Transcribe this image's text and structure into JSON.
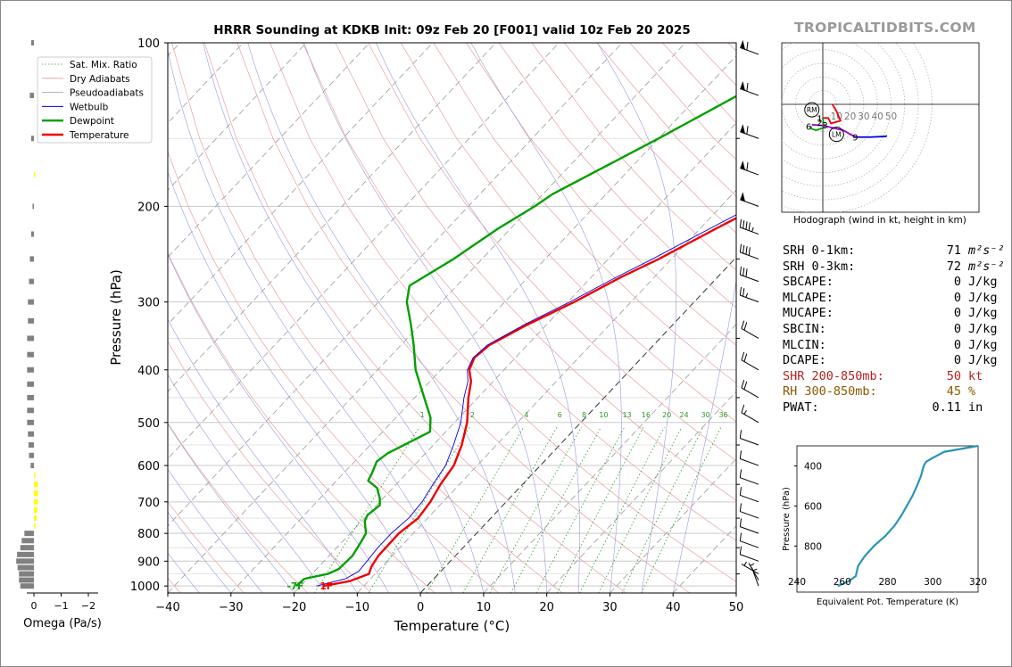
{
  "title": "HRRR Sounding at KDKB Init: 09z Feb 20 [F001] valid 10z Feb 20 2025",
  "brand": "TROPICALTIDBITS.COM",
  "chart_data": [
    {
      "type": "skewt",
      "xlabel": "Temperature (°C)",
      "ylabel": "Pressure (hPa)",
      "xlim": [
        -40,
        50
      ],
      "ylim": [
        1030,
        100
      ],
      "y_scale": "log",
      "x_ticks": [
        "−40",
        "−30",
        "−20",
        "−10",
        "0",
        "10",
        "20",
        "30",
        "40",
        "50"
      ],
      "y_ticks": [
        "100",
        "200",
        "300",
        "400",
        "500",
        "600",
        "700",
        "800",
        "900",
        "1000"
      ],
      "legend": {
        "placement": "upper-left",
        "entries": [
          {
            "name": "Sat. Mix. Ratio",
            "color": "#2a9a2a",
            "style": "dotted"
          },
          {
            "name": "Dry Adiabats",
            "color": "#e39a9a",
            "style": "solid"
          },
          {
            "name": "Pseudoadiabats",
            "color": "#a0a0a0",
            "style": "solid"
          },
          {
            "name": "Wetbulb",
            "color": "#0000dd",
            "style": "solid"
          },
          {
            "name": "Dewpoint",
            "color": "#00a000",
            "style": "solid"
          },
          {
            "name": "Temperature",
            "color": "#ee0000",
            "style": "solid"
          }
        ]
      },
      "series": [
        {
          "name": "Temperature",
          "color": "#ee0000",
          "points": [
            [
              1000,
              -16.5
            ],
            [
              980,
              -13
            ],
            [
              950,
              -11
            ],
            [
              920,
              -11.7
            ],
            [
              880,
              -12.2
            ],
            [
              800,
              -12.3
            ],
            [
              750,
              -11.5
            ],
            [
              700,
              -12
            ],
            [
              650,
              -13
            ],
            [
              600,
              -13.7
            ],
            [
              550,
              -15.5
            ],
            [
              500,
              -18
            ],
            [
              450,
              -21.5
            ],
            [
              420,
              -23.5
            ],
            [
              400,
              -25.5
            ],
            [
              380,
              -26.5
            ],
            [
              360,
              -26
            ],
            [
              330,
              -23
            ],
            [
              300,
              -19
            ],
            [
              270,
              -15.3
            ],
            [
              250,
              -12
            ],
            [
              220,
              -7.5
            ],
            [
              200,
              -4
            ],
            [
              170,
              1.5
            ],
            [
              150,
              5.8
            ],
            [
              130,
              9.5
            ],
            [
              118,
              12
            ],
            [
              110,
              13.8
            ],
            [
              100,
              16
            ]
          ]
        },
        {
          "name": "Dewpoint",
          "color": "#00a000",
          "points": [
            [
              1000,
              -20.7
            ],
            [
              970,
              -20.5
            ],
            [
              950,
              -17.5
            ],
            [
              930,
              -16.5
            ],
            [
              880,
              -16.3
            ],
            [
              830,
              -17
            ],
            [
              800,
              -17.5
            ],
            [
              760,
              -19.5
            ],
            [
              740,
              -20
            ],
            [
              710,
              -19.5
            ],
            [
              690,
              -20.5
            ],
            [
              660,
              -22.5
            ],
            [
              640,
              -25
            ],
            [
              620,
              -25.5
            ],
            [
              590,
              -26.5
            ],
            [
              570,
              -26
            ],
            [
              520,
              -22.5
            ],
            [
              490,
              -24.5
            ],
            [
              450,
              -28.5
            ],
            [
              400,
              -34
            ],
            [
              360,
              -38
            ],
            [
              330,
              -41.5
            ],
            [
              300,
              -45.5
            ],
            [
              280,
              -47.5
            ],
            [
              250,
              -44.5
            ],
            [
              220,
              -42
            ],
            [
              200,
              -39.5
            ],
            [
              190,
              -38.5
            ],
            [
              150,
              -30
            ],
            [
              120,
              -22.5
            ],
            [
              100,
              -16
            ]
          ]
        },
        {
          "name": "Wetbulb",
          "color": "#0000dd",
          "points": [
            [
              1000,
              -17.5
            ],
            [
              970,
              -14
            ],
            [
              940,
              -13
            ],
            [
              900,
              -13.2
            ],
            [
              850,
              -13.5
            ],
            [
              800,
              -13.5
            ],
            [
              750,
              -13
            ],
            [
              700,
              -13.3
            ],
            [
              650,
              -14.2
            ],
            [
              600,
              -15
            ],
            [
              550,
              -16.8
            ],
            [
              500,
              -19
            ],
            [
              450,
              -22.2
            ],
            [
              420,
              -24
            ],
            [
              400,
              -25.8
            ],
            [
              380,
              -26.7
            ],
            [
              360,
              -26.3
            ],
            [
              330,
              -23.5
            ],
            [
              300,
              -19.7
            ],
            [
              270,
              -16
            ],
            [
              250,
              -13
            ],
            [
              220,
              -8.5
            ],
            [
              200,
              -5
            ],
            [
              170,
              0.5
            ],
            [
              150,
              4.8
            ],
            [
              130,
              8.8
            ],
            [
              118,
              11.5
            ],
            [
              110,
              13
            ],
            [
              100,
              15
            ]
          ]
        }
      ],
      "surface_labels": {
        "dewpoint": "-7F",
        "temperature": "1F"
      },
      "mixing_ratio_labels": [
        "1",
        "2",
        "4",
        "6",
        "8",
        "10",
        "13",
        "16",
        "20",
        "24",
        "30",
        "36"
      ]
    },
    {
      "type": "bar",
      "orientation": "horizontal",
      "xlabel": "Omega (Pa/s)",
      "x_ticks": [
        "0",
        "−1",
        "−2"
      ],
      "bar_colors": {
        "descending": "#808080",
        "ascending": "#ffff00"
      },
      "values": [
        [
          1000,
          0.5
        ],
        [
          975,
          0.55
        ],
        [
          950,
          0.55
        ],
        [
          925,
          0.6
        ],
        [
          900,
          0.65
        ],
        [
          875,
          0.62
        ],
        [
          850,
          0.5
        ],
        [
          825,
          0.45
        ],
        [
          800,
          0.35
        ],
        [
          775,
          -0.05
        ],
        [
          750,
          -0.1
        ],
        [
          725,
          -0.12
        ],
        [
          700,
          -0.15
        ],
        [
          675,
          -0.15
        ],
        [
          650,
          -0.15
        ],
        [
          625,
          -0.05
        ],
        [
          600,
          0.12
        ],
        [
          575,
          0.18
        ],
        [
          550,
          0.2
        ],
        [
          525,
          0.22
        ],
        [
          500,
          0.25
        ],
        [
          475,
          0.25
        ],
        [
          450,
          0.25
        ],
        [
          425,
          0.25
        ],
        [
          400,
          0.25
        ],
        [
          375,
          0.25
        ],
        [
          350,
          0.25
        ],
        [
          325,
          0.22
        ],
        [
          300,
          0.22
        ],
        [
          275,
          0.18
        ],
        [
          250,
          0.15
        ],
        [
          225,
          0.1
        ],
        [
          200,
          0.05
        ],
        [
          175,
          -0.05
        ],
        [
          150,
          0.1
        ],
        [
          125,
          0.15
        ],
        [
          100,
          0.1
        ]
      ]
    },
    {
      "type": "hodograph",
      "caption": "Hodograph (wind in kt, height in km)",
      "ring_labels": [
        "10",
        "20",
        "30",
        "40",
        "50"
      ],
      "markers": [
        {
          "label": "RM",
          "u": -8,
          "v": -4
        },
        {
          "label": "LM",
          "u": 10,
          "v": -22
        }
      ],
      "segments": [
        {
          "color": "#ee0000",
          "points": [
            [
              7,
              0
            ],
            [
              10,
              -5
            ],
            [
              13,
              -12
            ],
            [
              6,
              -14
            ],
            [
              4,
              -10
            ],
            [
              0,
              -10
            ]
          ]
        },
        {
          "color": "#00a000",
          "points": [
            [
              0,
              -10
            ],
            [
              1,
              -17
            ],
            [
              -5,
              -19
            ],
            [
              -8,
              -18
            ],
            [
              -9,
              -16
            ]
          ]
        },
        {
          "color": "#9a00cc",
          "points": [
            [
              -8,
              -15
            ],
            [
              0,
              -15.5
            ],
            [
              15,
              -19
            ],
            [
              22,
              -23
            ],
            [
              25,
              -24
            ]
          ]
        },
        {
          "color": "#0000dd",
          "points": [
            [
              25,
              -24
            ],
            [
              35,
              -24
            ],
            [
              46,
              -23.5
            ],
            [
              47,
              -23
            ]
          ]
        }
      ],
      "height_labels": [
        {
          "label": "1",
          "u": -1,
          "v": -10
        },
        {
          "label": "2",
          "u": -1,
          "v": -13
        },
        {
          "label": "3",
          "u": 3,
          "v": -15
        },
        {
          "label": "6",
          "u": -9,
          "v": -16
        },
        {
          "label": "9",
          "u": 25,
          "v": -24
        }
      ]
    },
    {
      "type": "line",
      "xlabel": "Equivalent Pot. Temperature (K)",
      "ylabel": "Pressure (hPa)",
      "xlim": [
        240,
        320
      ],
      "ylim": [
        1030,
        300
      ],
      "x_ticks": [
        "240",
        "260",
        "280",
        "300",
        "320"
      ],
      "y_ticks": [
        "400",
        "600",
        "800"
      ],
      "series": [
        {
          "name": "",
          "color": "#2a94b4",
          "points": [
            [
              1000,
              258
            ],
            [
              975,
              263
            ],
            [
              950,
              266
            ],
            [
              900,
              267
            ],
            [
              850,
              270
            ],
            [
              800,
              274
            ],
            [
              750,
              279
            ],
            [
              700,
              283
            ],
            [
              650,
              286
            ],
            [
              600,
              288.5
            ],
            [
              550,
              291
            ],
            [
              500,
              293
            ],
            [
              450,
              294.8
            ],
            [
              420,
              295.5
            ],
            [
              400,
              296
            ],
            [
              380,
              297
            ],
            [
              360,
              300
            ],
            [
              330,
              305
            ],
            [
              300,
              320
            ]
          ]
        }
      ]
    }
  ],
  "params": [
    {
      "label": "SRH 0-1km:",
      "value": "71",
      "unit": "m²s⁻²",
      "color": "#000000"
    },
    {
      "label": "SRH 0-3km:",
      "value": "72",
      "unit": "m²s⁻²",
      "color": "#000000"
    },
    {
      "label": "SBCAPE:",
      "value": "0",
      "unit": "J/kg",
      "color": "#000000"
    },
    {
      "label": "MLCAPE:",
      "value": "0",
      "unit": "J/kg",
      "color": "#000000"
    },
    {
      "label": "MUCAPE:",
      "value": "0",
      "unit": "J/kg",
      "color": "#000000"
    },
    {
      "label": "SBCIN:",
      "value": "0",
      "unit": "J/kg",
      "color": "#000000"
    },
    {
      "label": "MLCIN:",
      "value": "0",
      "unit": "J/kg",
      "color": "#000000"
    },
    {
      "label": "DCAPE:",
      "value": "0",
      "unit": "J/kg",
      "color": "#000000"
    },
    {
      "label": "SHR 200-850mb:",
      "value": "50",
      "unit": "kt",
      "color": "#b22222"
    },
    {
      "label": "RH 300-850mb:",
      "value": "45",
      "unit": "%",
      "color": "#8b5a00"
    },
    {
      "label": "PWAT:",
      "value": "0.11",
      "unit": "in",
      "color": "#000000"
    }
  ],
  "wind_barbs": [
    {
      "p": 1000,
      "spd": 5,
      "dir": 340
    },
    {
      "p": 975,
      "spd": 5,
      "dir": 330
    },
    {
      "p": 950,
      "spd": 5,
      "dir": 300
    },
    {
      "p": 900,
      "spd": 10,
      "dir": 290
    },
    {
      "p": 850,
      "spd": 10,
      "dir": 290
    },
    {
      "p": 800,
      "spd": 10,
      "dir": 290
    },
    {
      "p": 750,
      "spd": 10,
      "dir": 290
    },
    {
      "p": 700,
      "spd": 10,
      "dir": 290
    },
    {
      "p": 650,
      "spd": 10,
      "dir": 290
    },
    {
      "p": 600,
      "spd": 10,
      "dir": 290
    },
    {
      "p": 550,
      "spd": 10,
      "dir": 290
    },
    {
      "p": 500,
      "spd": 15,
      "dir": 300
    },
    {
      "p": 450,
      "spd": 20,
      "dir": 300
    },
    {
      "p": 400,
      "spd": 20,
      "dir": 300
    },
    {
      "p": 350,
      "spd": 20,
      "dir": 300
    },
    {
      "p": 300,
      "spd": 25,
      "dir": 290
    },
    {
      "p": 275,
      "spd": 30,
      "dir": 290
    },
    {
      "p": 250,
      "spd": 40,
      "dir": 290
    },
    {
      "p": 225,
      "spd": 45,
      "dir": 290
    },
    {
      "p": 200,
      "spd": 50,
      "dir": 290
    },
    {
      "p": 175,
      "spd": 60,
      "dir": 290
    },
    {
      "p": 150,
      "spd": 60,
      "dir": 290
    },
    {
      "p": 125,
      "spd": 60,
      "dir": 290
    },
    {
      "p": 105,
      "spd": 60,
      "dir": 290
    }
  ]
}
